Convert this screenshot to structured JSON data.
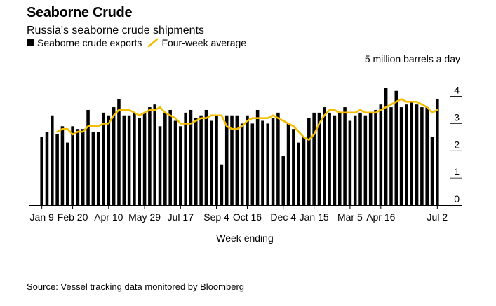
{
  "header": {
    "title": "Seaborne Crude",
    "subtitle": "Russia's seaborne crude shipments"
  },
  "legend": {
    "bars_label": "Seaborne crude exports",
    "line_label": "Four-week average",
    "bar_color": "#000000",
    "line_color": "#f5bd00"
  },
  "unit_label": "5 million barrels a day",
  "source": "Source: Vessel tracking data monitored by Bloomberg",
  "chart_data": {
    "type": "bar",
    "xlabel": "Week ending",
    "ylabel": "",
    "ylim": [
      0,
      4.5
    ],
    "y_ticks": [
      0,
      1,
      2,
      3,
      4
    ],
    "y_axis_position": "right",
    "grid": false,
    "legend_position": "top-left",
    "x_tick_labels": [
      {
        "label": "Jan 9",
        "index": 0
      },
      {
        "label": "Feb 20",
        "index": 6
      },
      {
        "label": "Apr 10",
        "index": 13
      },
      {
        "label": "May 29",
        "index": 20
      },
      {
        "label": "Jul 17",
        "index": 27
      },
      {
        "label": "Sep 4",
        "index": 34
      },
      {
        "label": "Oct 16",
        "index": 40
      },
      {
        "label": "Dec 4",
        "index": 47
      },
      {
        "label": "Jan 15",
        "index": 53
      },
      {
        "label": "Mar 5",
        "index": 60
      },
      {
        "label": "Apr 16",
        "index": 66
      },
      {
        "label": "Jul 2",
        "index": 77
      }
    ],
    "series": [
      {
        "name": "Seaborne crude exports",
        "type": "bar",
        "values": [
          2.5,
          2.7,
          3.3,
          2.6,
          2.9,
          2.3,
          2.9,
          2.8,
          2.8,
          3.5,
          2.7,
          2.7,
          3.4,
          3.3,
          3.6,
          3.9,
          3.3,
          3.3,
          3.4,
          3.2,
          3.4,
          3.6,
          3.7,
          2.9,
          3.4,
          3.5,
          3.1,
          2.9,
          3.4,
          3.5,
          3.2,
          3.3,
          3.5,
          3.1,
          3.3,
          1.5,
          3.3,
          3.3,
          3.3,
          3.0,
          3.3,
          3.0,
          3.5,
          3.1,
          3.0,
          3.2,
          3.4,
          1.8,
          3.0,
          2.8,
          2.3,
          2.5,
          3.2,
          3.4,
          3.4,
          3.6,
          3.4,
          3.3,
          3.4,
          3.6,
          3.1,
          3.3,
          3.4,
          3.3,
          3.4,
          3.5,
          3.7,
          4.3,
          3.6,
          4.2,
          3.6,
          3.7,
          3.8,
          3.7,
          3.6,
          3.6,
          2.5,
          3.9
        ]
      },
      {
        "name": "Four-week average",
        "type": "line",
        "start_index": 3,
        "values": [
          2.7,
          2.8,
          2.8,
          2.6,
          2.7,
          2.7,
          2.9,
          2.9,
          2.9,
          3.0,
          3.0,
          3.3,
          3.5,
          3.5,
          3.5,
          3.4,
          3.3,
          3.4,
          3.5,
          3.5,
          3.6,
          3.4,
          3.3,
          3.2,
          3.0,
          3.0,
          3.0,
          3.1,
          3.2,
          3.2,
          3.3,
          3.3,
          3.3,
          2.9,
          2.8,
          2.8,
          2.9,
          3.1,
          3.2,
          3.2,
          3.2,
          3.2,
          3.3,
          3.2,
          3.1,
          3.0,
          2.9,
          2.7,
          2.5,
          2.4,
          2.6,
          3.0,
          3.3,
          3.5,
          3.5,
          3.4,
          3.4,
          3.4,
          3.4,
          3.5,
          3.4,
          3.4,
          3.4,
          3.5,
          3.6,
          3.7,
          3.8,
          3.9,
          3.8,
          3.8,
          3.8,
          3.7,
          3.6,
          3.4,
          3.5
        ]
      }
    ]
  }
}
